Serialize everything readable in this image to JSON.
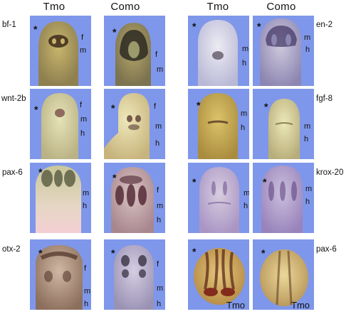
{
  "column_headers": [
    "Tmo",
    "Como",
    "Tmo",
    "Como"
  ],
  "left_row_labels": [
    "bf-1",
    "wnt-2b",
    "pax-6",
    "otx-2"
  ],
  "right_row_labels": [
    "en-2",
    "fgf-8",
    "krox-20",
    "pax-6"
  ],
  "asterisk": "*",
  "regions": {
    "f": "f",
    "m": "m",
    "h": "h"
  },
  "panel_label_tmo": "Tmo",
  "panel_background": "#7f97ea"
}
